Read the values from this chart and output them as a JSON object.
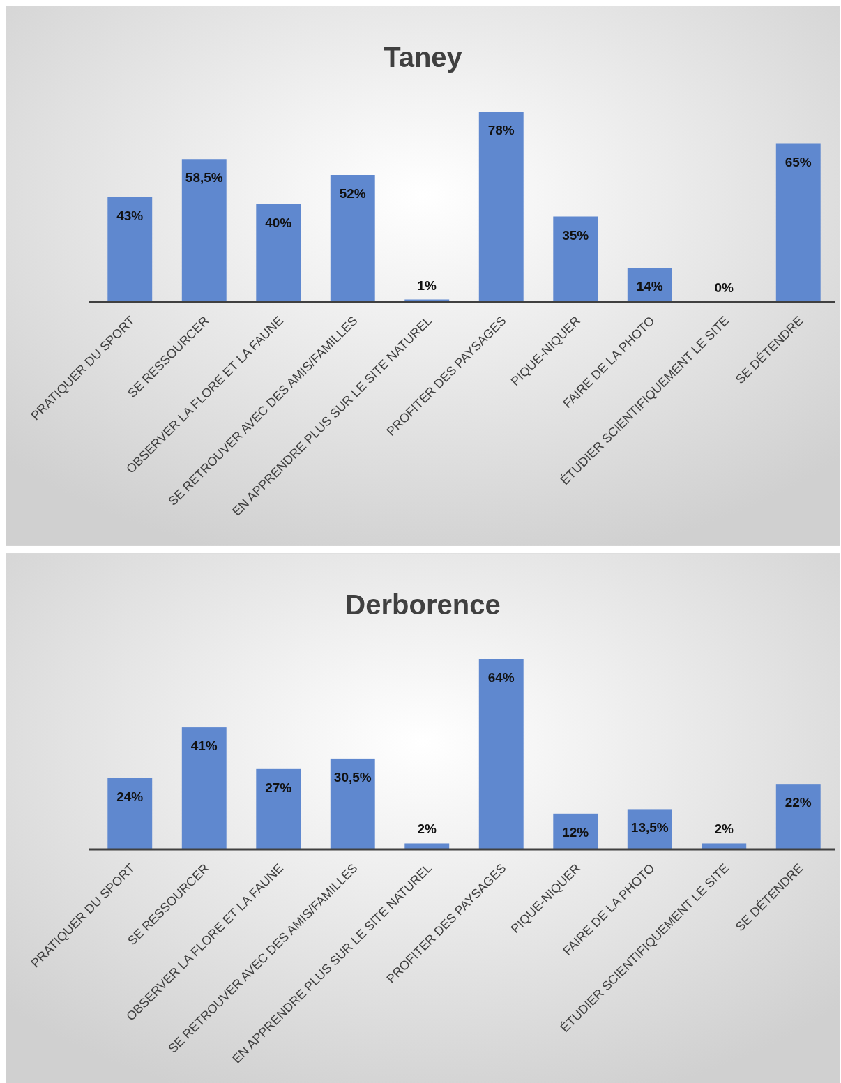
{
  "chart_data": [
    {
      "type": "bar",
      "title": "Taney",
      "categories": [
        "PRATIQUER DU SPORT",
        "SE RESSOURCER",
        "OBSERVER LA FLORE ET LA FAUNE",
        "SE RETROUVER AVEC DES AMIS/FAMILLES",
        "EN APPRENDRE PLUS SUR LE SITE NATUREL",
        "PROFITER DES PAYSAGES",
        "PIQUE-NIQUER",
        "FAIRE DE LA PHOTO",
        "ÉTUDIER SCIENTIFIQUEMENT LE SITE",
        "SE DÉTENDRE"
      ],
      "values": [
        43,
        58.5,
        40,
        52,
        1,
        78,
        35,
        14,
        0,
        65
      ],
      "value_labels": [
        "43%",
        "58,5%",
        "40%",
        "52%",
        "1%",
        "78%",
        "35%",
        "14%",
        "0%",
        "65%"
      ],
      "color": "#5f88cf"
    },
    {
      "type": "bar",
      "title": "Derborence",
      "categories": [
        "PRATIQUER DU SPORT",
        "SE RESSOURCER",
        "OBSERVER LA FLORE ET LA FAUNE",
        "SE RETROUVER AVEC DES AMIS/FAMILLES",
        "EN APPRENDRE PLUS SUR LE SITE NATUREL",
        "PROFITER DES PAYSAGES",
        "PIQUE-NIQUER",
        "FAIRE DE LA PHOTO",
        "ÉTUDIER SCIENTIFIQUEMENT LE SITE",
        "SE DÉTENDRE"
      ],
      "values": [
        24,
        41,
        27,
        30.5,
        2,
        64,
        12,
        13.5,
        2,
        22
      ],
      "value_labels": [
        "24%",
        "41%",
        "27%",
        "30,5%",
        "2%",
        "64%",
        "12%",
        "13,5%",
        "2%",
        "22%"
      ],
      "color": "#5f88cf"
    }
  ]
}
